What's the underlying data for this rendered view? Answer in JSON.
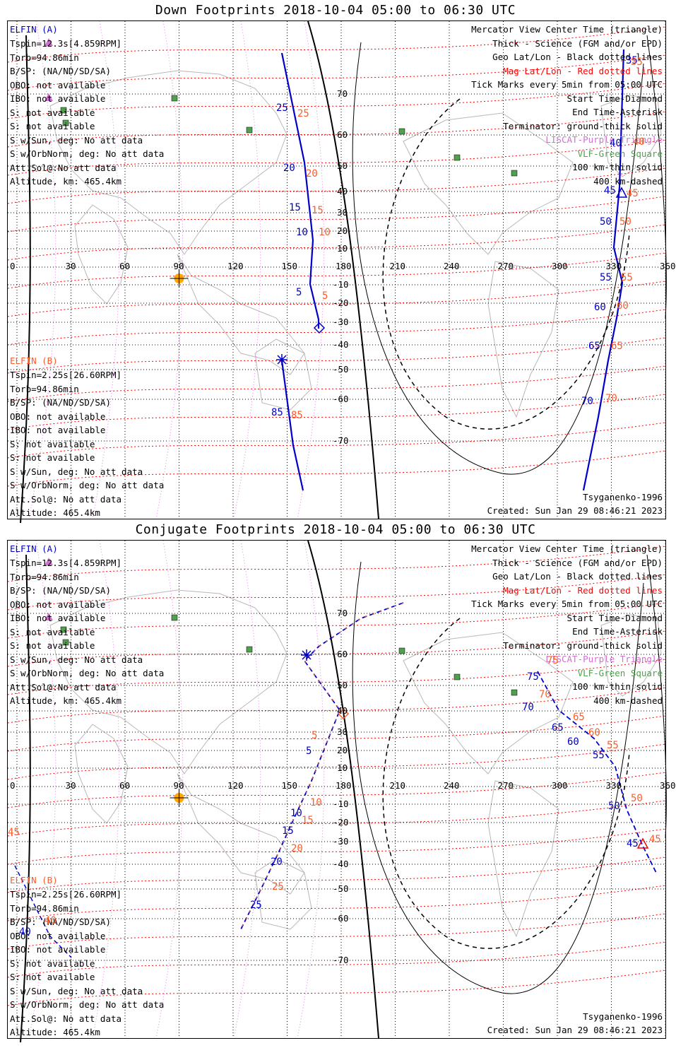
{
  "panels": [
    {
      "title": "Down Footprints 2018-10-04 05:00 to 06:30 UTC",
      "elfin_a": {
        "header": "ELFIN (A)",
        "lines": [
          "Tspin=12.3s[4.859RPM]",
          "Torb=94.86min",
          "B/SP: (NA/ND/SD/SA)",
          "OBO: not available",
          "IBO: not available",
          "S: not available",
          "S: not available",
          "S w/Sun, deg: No att data",
          "S w/OrbNorm, deg: No att data",
          "Att.Sol@:No att data",
          "Altitude, km: 465.4km"
        ]
      },
      "elfin_b": {
        "header": "ELFIN (B)",
        "lines": [
          "Tspin=2.25s[26.60RPM]",
          "Torb=94.86min",
          "B/SP: (NA/ND/SD/SA)",
          "OBO: not available",
          "IBO: not available",
          "S: not available",
          "S: not available",
          "S w/Sun, deg: No att data",
          "S w/OrbNorm, deg: No att data",
          "Att.Sol@: No att data",
          "Altitude: 465.4km"
        ]
      },
      "legend": [
        "Mercator View Center Time (triangle)",
        "Thick - Science (FGM and/or EPD)",
        "Geo Lat/Lon - Black dotted lines",
        "Mag Lat/Lon - Red dotted lines",
        "Tick Marks every 5min from 05:00 UTC",
        "Start Time-Diamond",
        "End Time-Asterisk",
        "Terminator: ground-thick solid",
        "LISCAT-Purple Triangle",
        "VLF-Green Square",
        "100 km-thin solid",
        "400 km-dashed"
      ],
      "model": "Tsyganenko-1996",
      "created": "Created: Sun Jan 29 08:46:21 2023",
      "blue_ticks": [
        "25",
        "20",
        "15",
        "10",
        "5",
        "85",
        "40",
        "45",
        "50",
        "55",
        "60",
        "65",
        "70",
        "35"
      ],
      "orange_ticks": [
        "25",
        "20",
        "15",
        "10",
        "5",
        "85",
        "40",
        "45",
        "50",
        "55",
        "60",
        "65",
        "70",
        "35"
      ]
    },
    {
      "title": "Conjugate Footprints 2018-10-04 05:00 to 06:30 UTC",
      "elfin_a": {
        "header": "ELFIN (A)",
        "lines": [
          "Tspin=12.3s[4.859RPM]",
          "Torb=94.86min",
          "B/SP: (NA/ND/SD/SA)",
          "OBO: not available",
          "IBO: not available",
          "S: not available",
          "S: not available",
          "S w/Sun, deg: No att data",
          "S w/OrbNorm, deg: No att data",
          "Att.Sol@:No att data",
          "Altitude, km: 465.4km"
        ]
      },
      "elfin_b": {
        "header": "ELFIN (B)",
        "lines": [
          "Tspin=2.25s[26.60RPM]",
          "Torb=94.86min",
          "B/SP: (NA/ND/SD/SA)",
          "OBO: not available",
          "IBO: not available",
          "S: not available",
          "S: not available",
          "S w/Sun, deg: No att data",
          "S w/OrbNorm, deg: No att data",
          "Att.Sol@: No att data",
          "Altitude: 465.4km"
        ]
      },
      "legend": [
        "Mercator View Center Time (triangle)",
        "Thick - Science (FGM and/or EPD)",
        "Geo Lat/Lon - Black dotted lines",
        "Mag Lat/Lon - Red dotted lines",
        "Tick Marks every 5min from 05:00 UTC",
        "Start Time-Diamond",
        "End Time-Asterisk",
        "Terminator: ground-thick solid",
        "LISCAT-Purple Triangle",
        "VLF-Green Square",
        "100 km-thin solid",
        "400 km-dashed"
      ],
      "model": "Tsyganenko-1996",
      "created": "Created: Sun Jan 29 08:46:21 2023",
      "blue_ticks": [
        "75",
        "70",
        "65",
        "60",
        "55",
        "50",
        "45",
        "5",
        "10",
        "15",
        "20",
        "25",
        "40"
      ],
      "orange_ticks": [
        "75",
        "70",
        "65",
        "60",
        "55",
        "50",
        "45",
        "5",
        "10",
        "15",
        "20",
        "25",
        "40",
        "45"
      ]
    }
  ],
  "lon_labels": [
    "0",
    "30",
    "60",
    "90",
    "120",
    "150",
    "180",
    "210",
    "240",
    "270",
    "300",
    "330",
    "360"
  ],
  "lat_labels": [
    "70",
    "60",
    "50",
    "40",
    "30",
    "20",
    "10",
    "-10",
    "-20",
    "-30",
    "-40",
    "-50",
    "-60",
    "-70"
  ],
  "colors": {
    "elfin_a": "#0000c8",
    "elfin_b": "#ff5a28",
    "mag_grid": "#ff0000",
    "liscat": "#d070d0",
    "vlf": "#50a050",
    "sun": "#ffa500"
  }
}
